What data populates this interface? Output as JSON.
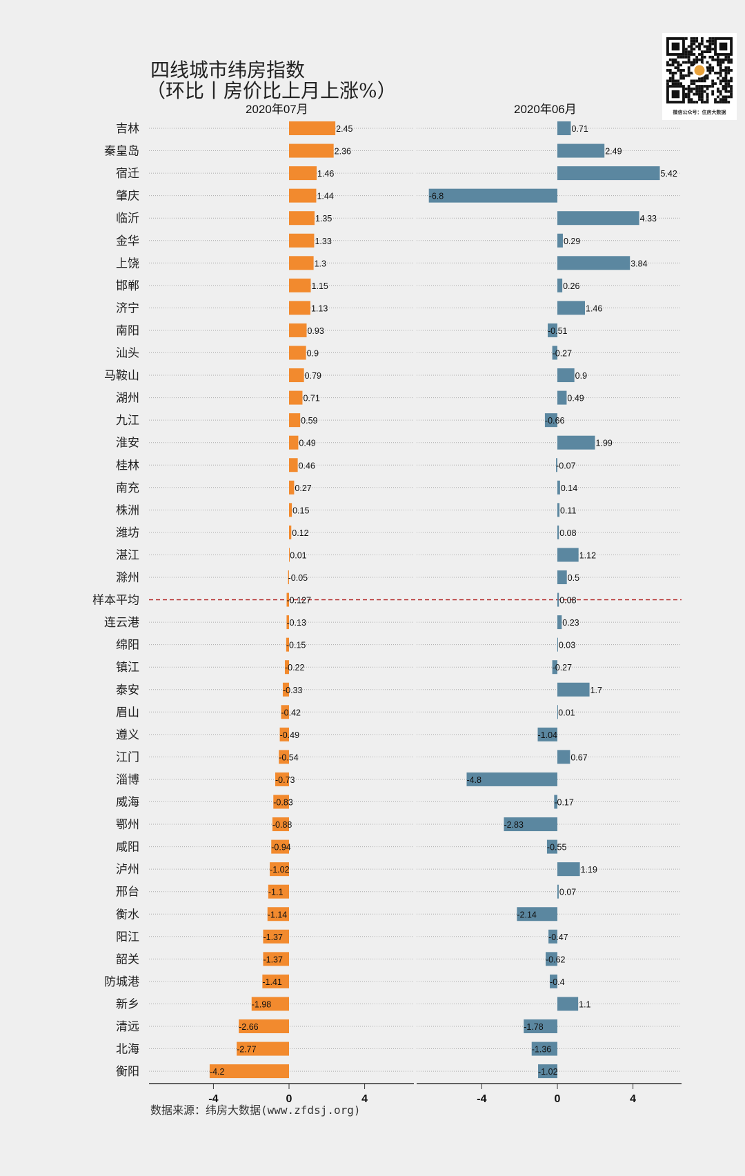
{
  "chart_data": {
    "type": "bar",
    "orientation": "horizontal",
    "title": "四线城市纬房指数",
    "subtitle": "（环比丨房价比上月上涨%）",
    "source": "数据来源：纬房大数据(www.zfdsj.org)",
    "qr_caption": "微信公众号：住房大数据",
    "categories": [
      "吉林",
      "秦皇岛",
      "宿迁",
      "肇庆",
      "临沂",
      "金华",
      "上饶",
      "邯郸",
      "济宁",
      "南阳",
      "汕头",
      "马鞍山",
      "湖州",
      "九江",
      "淮安",
      "桂林",
      "南充",
      "株洲",
      "潍坊",
      "湛江",
      "滁州",
      "样本平均",
      "连云港",
      "绵阳",
      "镇江",
      "泰安",
      "眉山",
      "遵义",
      "江门",
      "淄博",
      "威海",
      "鄂州",
      "咸阳",
      "泸州",
      "邢台",
      "衡水",
      "阳江",
      "韶关",
      "防城港",
      "新乡",
      "清远",
      "北海",
      "衡阳"
    ],
    "average_category": "样本平均",
    "series": [
      {
        "name": "2020年07月",
        "color": "#F28A2E",
        "values": [
          2.45,
          2.36,
          1.46,
          1.44,
          1.35,
          1.33,
          1.3,
          1.15,
          1.13,
          0.93,
          0.9,
          0.79,
          0.71,
          0.59,
          0.49,
          0.46,
          0.27,
          0.15,
          0.12,
          0.01,
          -0.05,
          -0.127,
          -0.13,
          -0.15,
          -0.22,
          -0.33,
          -0.42,
          -0.49,
          -0.54,
          -0.73,
          -0.83,
          -0.88,
          -0.94,
          -1.02,
          -1.1,
          -1.14,
          -1.37,
          -1.37,
          -1.41,
          -1.98,
          -2.66,
          -2.77,
          -4.2
        ]
      },
      {
        "name": "2020年06月",
        "color": "#5B87A0",
        "values": [
          0.71,
          2.49,
          5.42,
          -6.8,
          4.33,
          0.29,
          3.84,
          0.26,
          1.46,
          -0.51,
          -0.27,
          0.9,
          0.49,
          -0.66,
          1.99,
          -0.07,
          0.14,
          0.11,
          0.08,
          1.12,
          0.5,
          0.08,
          0.23,
          0.03,
          -0.27,
          1.7,
          0.01,
          -1.04,
          0.67,
          -4.8,
          -0.17,
          -2.83,
          -0.55,
          1.19,
          0.07,
          -2.14,
          -0.47,
          -0.62,
          -0.4,
          1.1,
          -1.78,
          -1.36,
          -1.02
        ]
      }
    ],
    "xticks": [
      -4,
      0,
      4
    ],
    "average_line_color": "#B22222",
    "grid": "dotted horizontal"
  }
}
